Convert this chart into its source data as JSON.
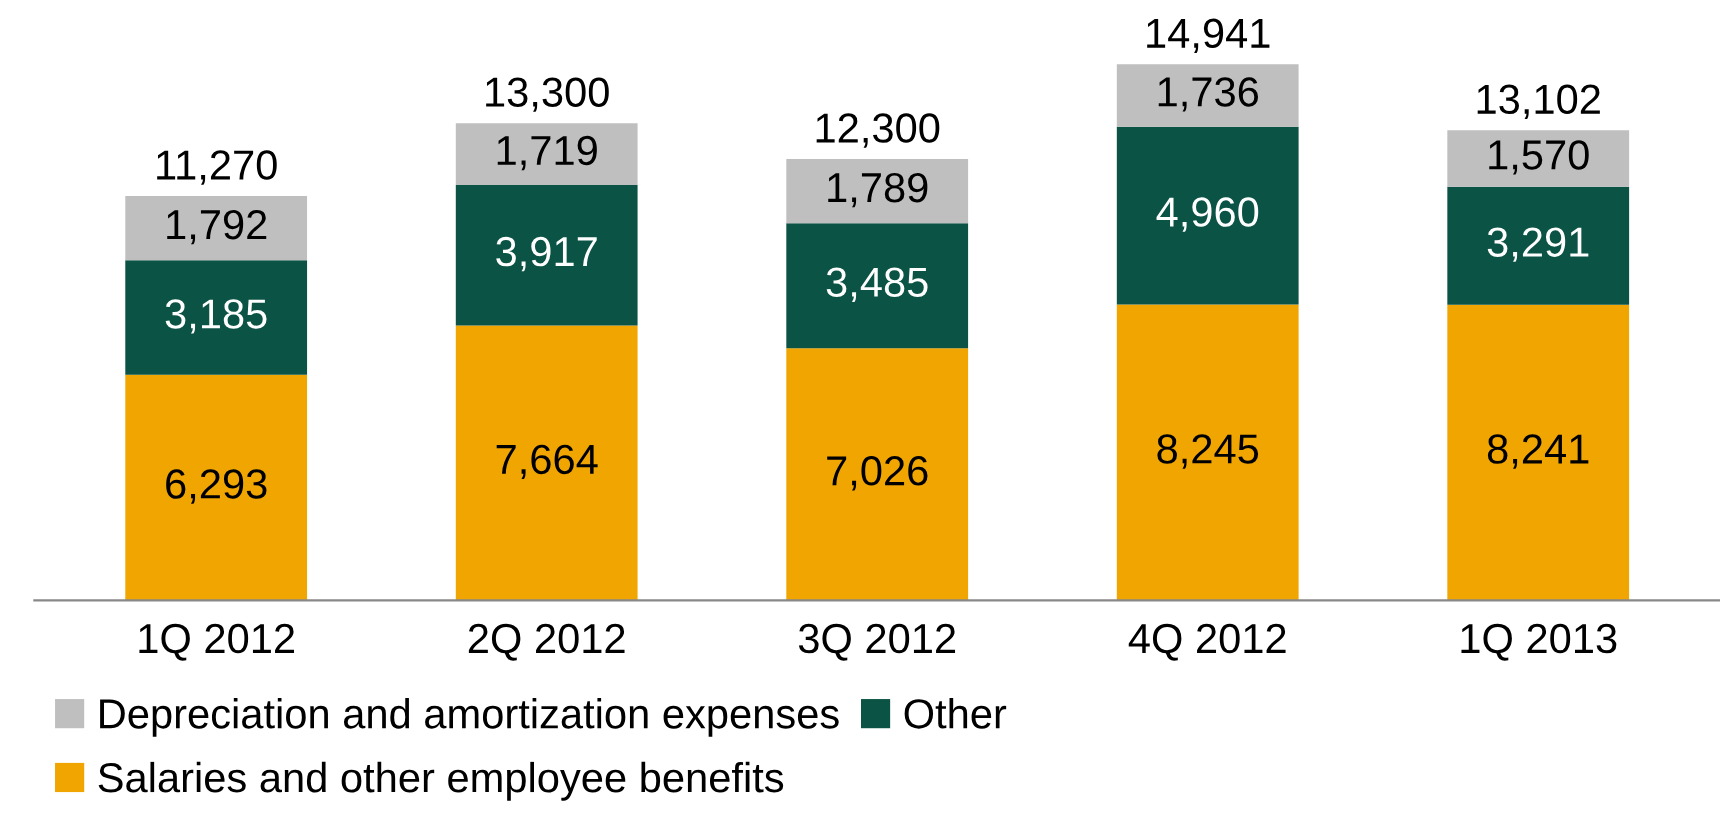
{
  "chart_data": {
    "type": "bar",
    "stacked": true,
    "legend": "bottom",
    "grid": false,
    "categories": [
      "1Q 2012",
      "2Q 2012",
      "3Q 2012",
      "4Q 2012",
      "1Q 2013"
    ],
    "series": [
      {
        "name": "Salaries and other employee benefits",
        "color": "#f0a500",
        "values": [
          6293,
          7664,
          7026,
          8245,
          8241
        ],
        "value_labels": [
          "6,293",
          "7,664",
          "7,026",
          "8,245",
          "8,241"
        ]
      },
      {
        "name": "Other",
        "color": "#0b5345",
        "values": [
          3185,
          3917,
          3485,
          4960,
          3291
        ],
        "value_labels": [
          "3,185",
          "3,917",
          "3,485",
          "4,960",
          "3,291"
        ]
      },
      {
        "name": "Depreciation and amortization expenses",
        "color": "#bfbfbf",
        "values": [
          1792,
          1719,
          1789,
          1736,
          1570
        ],
        "value_labels": [
          "1,792",
          "1,719",
          "1,789",
          "1,736",
          "1,570"
        ]
      }
    ],
    "totals": [
      "11,270",
      "13,300",
      "12,300",
      "14,941",
      "13,102"
    ]
  }
}
